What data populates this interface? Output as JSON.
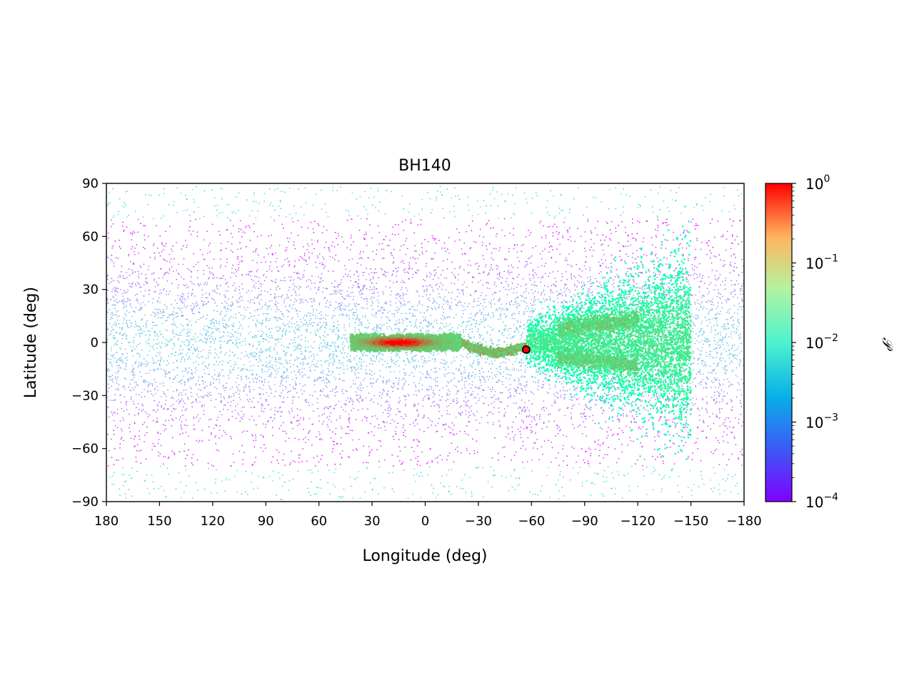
{
  "chart_data": {
    "type": "scatter",
    "title": "BH140",
    "xlabel": "Longitude (deg)",
    "ylabel": "Latitude (deg)",
    "xlim": [
      180,
      -180
    ],
    "ylim": [
      -90,
      90
    ],
    "x_ticks": [
      180,
      150,
      120,
      90,
      60,
      30,
      0,
      -30,
      -60,
      -90,
      -120,
      -150,
      -180
    ],
    "x_tick_labels": [
      "180",
      "150",
      "120",
      "90",
      "60",
      "30",
      "0",
      "−30",
      "−60",
      "−90",
      "−120",
      "−150",
      "−180"
    ],
    "y_ticks": [
      90,
      60,
      30,
      0,
      -30,
      -60,
      -90
    ],
    "y_tick_labels": [
      "90",
      "60",
      "30",
      "0",
      "−30",
      "−60",
      "−90"
    ],
    "grid": false,
    "colorbar": {
      "label": "𝒫",
      "scale": "log",
      "range": [
        0.0001,
        1
      ],
      "colormap": "rainbow",
      "ticks": [
        1,
        0.1,
        0.01,
        0.001,
        0.0001
      ],
      "tick_labels": [
        {
          "base": "10",
          "exp": "0"
        },
        {
          "base": "10",
          "exp": "−1"
        },
        {
          "base": "10",
          "exp": "−2"
        },
        {
          "base": "10",
          "exp": "−3"
        },
        {
          "base": "10",
          "exp": "−4"
        }
      ]
    },
    "density_features": [
      {
        "name": "halo",
        "x_range": [
          180,
          -180
        ],
        "y_center": 0,
        "y_sigma": 30,
        "value_range": [
          0.0001,
          0.002
        ]
      },
      {
        "name": "stream-core",
        "x_range": [
          42,
          -20
        ],
        "y_center": 0,
        "y_halfwidth": 5,
        "value_range": [
          0.05,
          1
        ]
      },
      {
        "name": "stream-tail",
        "x_range": [
          -20,
          -57
        ],
        "y_center": -4,
        "value_range": [
          0.05,
          0.15
        ]
      },
      {
        "name": "forked-plume",
        "x_range": [
          -57,
          -150
        ],
        "y_branches": [
          10,
          -10
        ],
        "value_range": [
          0.005,
          0.05
        ]
      }
    ],
    "marker": {
      "x": -57,
      "y": -4,
      "color": "#ff0000",
      "edge_color": "#000000"
    }
  }
}
